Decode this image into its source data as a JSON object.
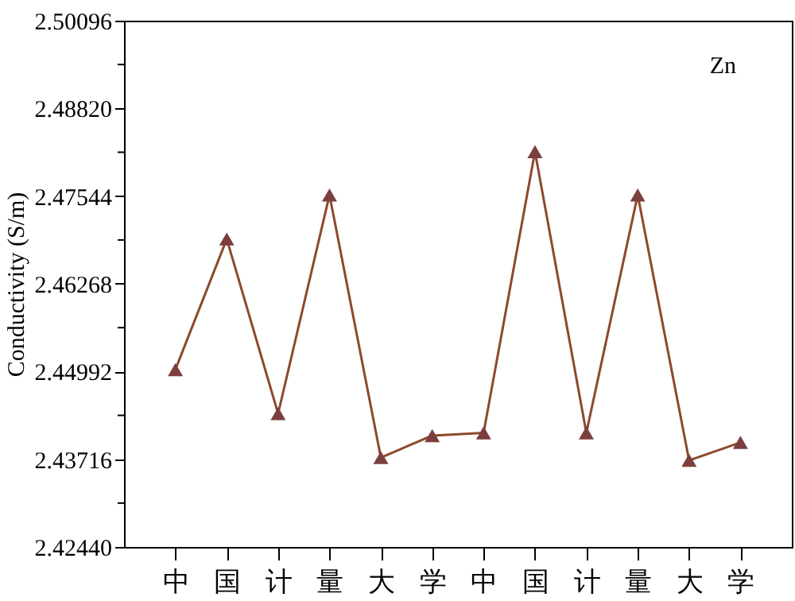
{
  "chart_data": {
    "type": "line",
    "ylabel": "Conductivity (S/m)",
    "annotations": [
      "Zn"
    ],
    "categories": [
      "中",
      "国",
      "计",
      "量",
      "大",
      "学",
      "中",
      "国",
      "计",
      "量",
      "大",
      "学"
    ],
    "series": [
      {
        "color": "#8b4a2b",
        "values": [
          2.4502,
          2.4692,
          2.4438,
          2.4756,
          2.4374,
          2.4406,
          2.441,
          2.4819,
          2.441,
          2.4756,
          2.437,
          2.4396
        ]
      }
    ],
    "ylim": [
      2.4244,
      2.50096
    ],
    "yticks": [
      {
        "value": 2.4244,
        "label": "2.42440"
      },
      {
        "value": 2.43078,
        "label": null
      },
      {
        "value": 2.43716,
        "label": "2.43716"
      },
      {
        "value": 2.44354,
        "label": null
      },
      {
        "value": 2.44992,
        "label": "2.44992"
      },
      {
        "value": 2.4563,
        "label": null
      },
      {
        "value": 2.46268,
        "label": "2.46268"
      },
      {
        "value": 2.46906,
        "label": null
      },
      {
        "value": 2.47544,
        "label": "2.47544"
      },
      {
        "value": 2.48182,
        "label": null
      },
      {
        "value": 2.4882,
        "label": "2.48820"
      },
      {
        "value": 2.49458,
        "label": null
      },
      {
        "value": 2.50096,
        "label": "2.50096"
      }
    ],
    "marker": "triangle",
    "line_style": "solid",
    "grid": false
  }
}
